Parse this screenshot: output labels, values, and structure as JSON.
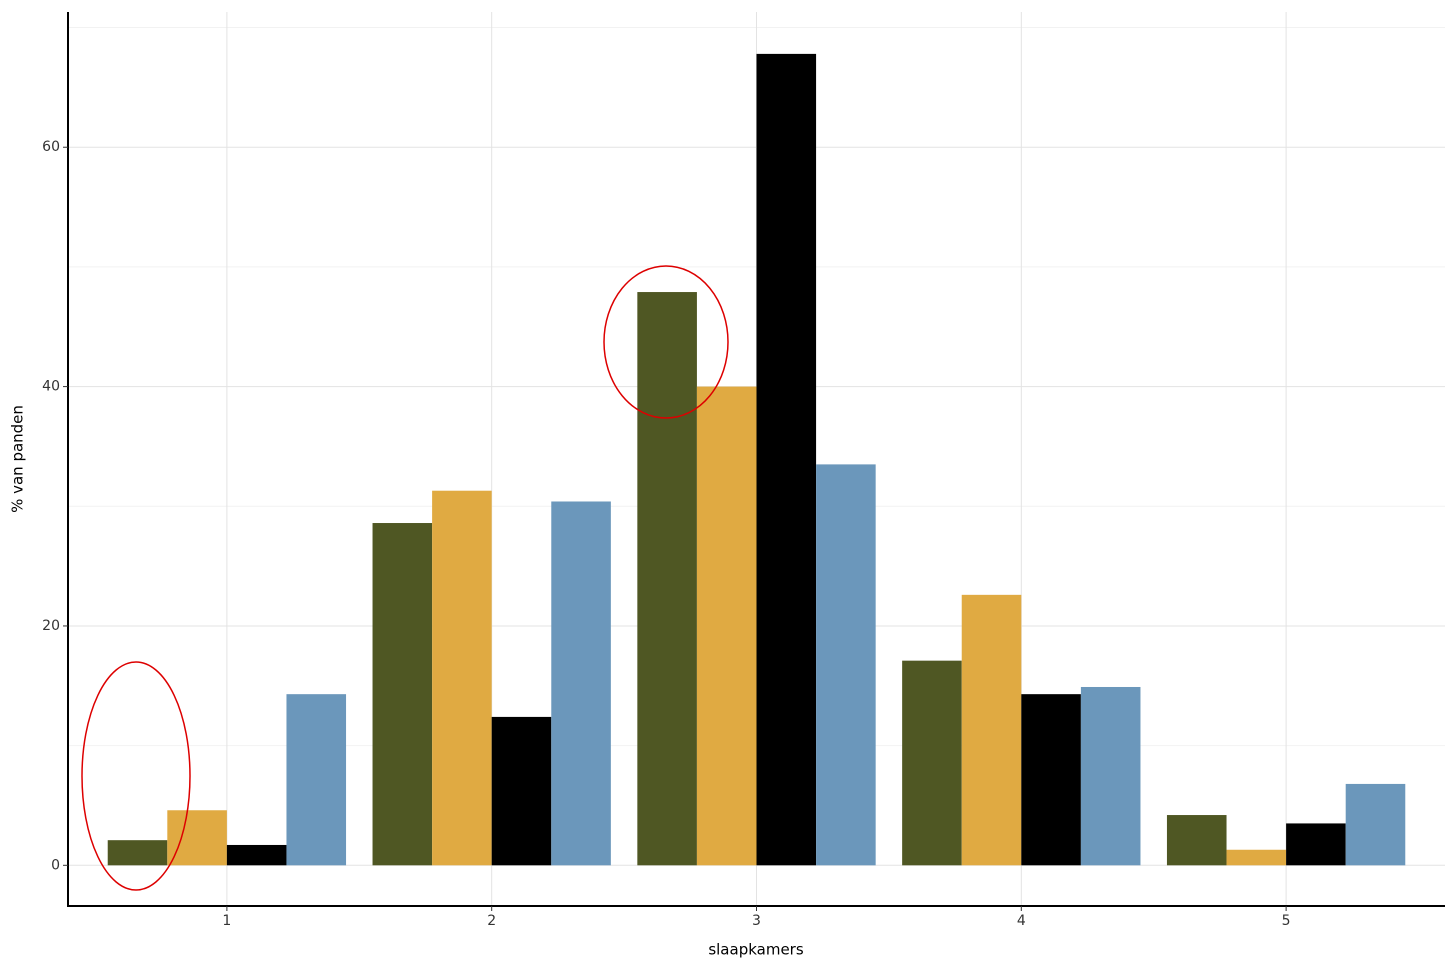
{
  "chart_data": {
    "type": "bar",
    "x_label": "slaapkamers",
    "y_label": "% van panden",
    "x": [
      1,
      2,
      3,
      4,
      5
    ],
    "series": [
      {
        "color": "#4f5723",
        "values": [
          2.1,
          28.6,
          47.9,
          17.1,
          4.2
        ]
      },
      {
        "color": "#e0aa42",
        "values": [
          4.6,
          31.3,
          40.0,
          22.6,
          1.3
        ]
      },
      {
        "color": "#000000",
        "values": [
          1.7,
          12.4,
          67.8,
          14.3,
          3.5
        ]
      },
      {
        "color": "#6b97bb",
        "values": [
          14.3,
          30.4,
          33.5,
          14.9,
          6.8
        ]
      }
    ],
    "xlim": [
      0.4,
      5.6
    ],
    "xticks": [
      1,
      2,
      3,
      4,
      5
    ],
    "ylim": [
      -3.4,
      71.3
    ],
    "yticks": [
      0,
      20,
      40,
      60
    ],
    "yminorticks": [
      10,
      30,
      50,
      70
    ],
    "grid": true
  }
}
